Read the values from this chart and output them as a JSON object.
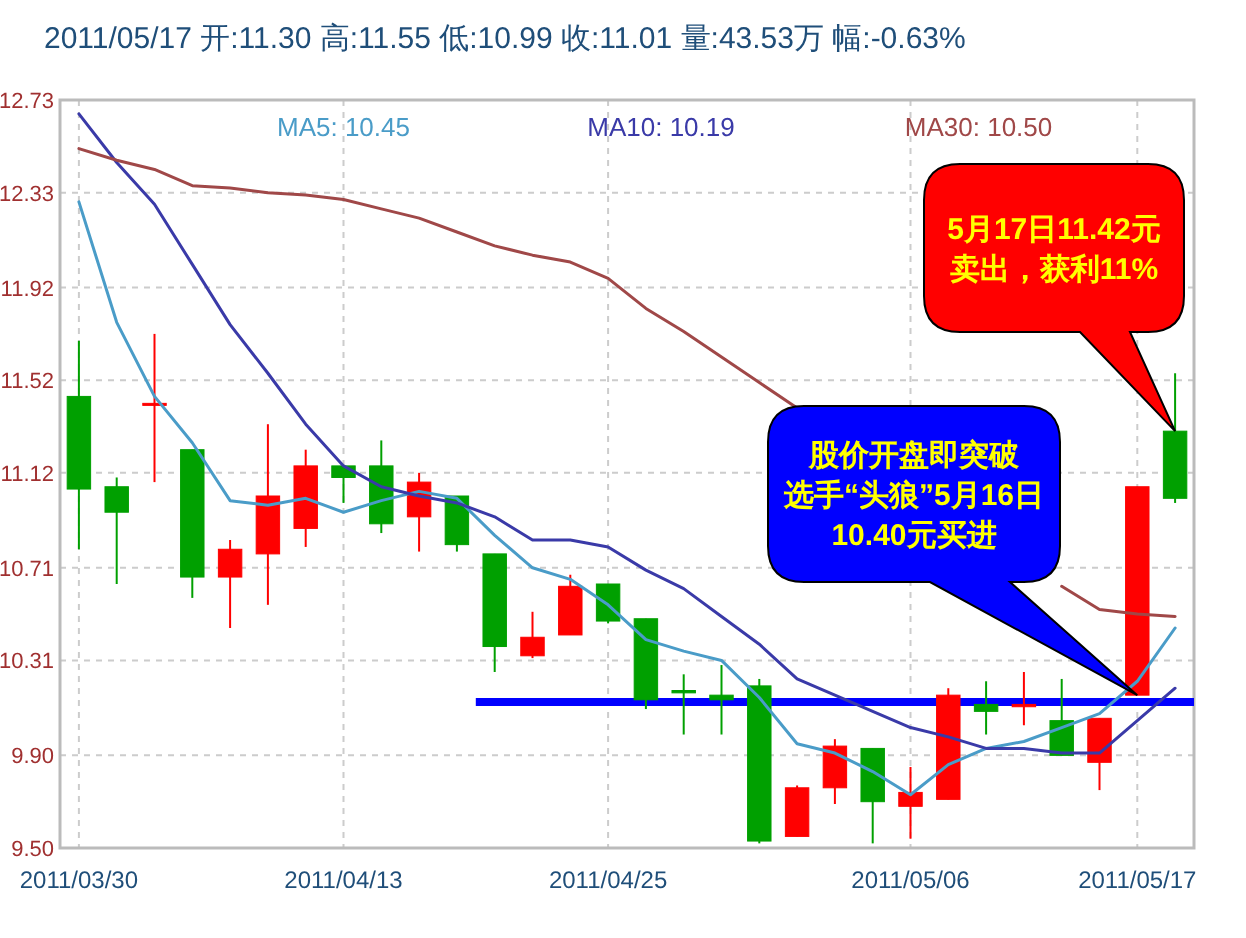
{
  "chart_data": {
    "type": "candlestick",
    "title": "2011/05/17  开:11.30  高:11.55  低:10.99  收:11.01  量:43.53万  幅:-0.63%",
    "categories": [
      "2011/03/30",
      null,
      null,
      null,
      null,
      null,
      null,
      "2011/04/13",
      null,
      null,
      null,
      null,
      null,
      null,
      "2011/04/25",
      null,
      null,
      null,
      null,
      null,
      null,
      null,
      "2011/05/06",
      null,
      null,
      null,
      null,
      null,
      "2011/05/17",
      null
    ],
    "ylim": [
      9.5,
      12.73
    ],
    "yticks": [
      {
        "value": 9.5,
        "label": "9.50"
      },
      {
        "value": 9.9,
        "label": "9.90"
      },
      {
        "value": 10.31,
        "label": "10.31"
      },
      {
        "value": 10.71,
        "label": "10.71"
      },
      {
        "value": 11.12,
        "label": "11.12"
      },
      {
        "value": 11.52,
        "label": "11.52"
      },
      {
        "value": 11.92,
        "label": "11.92"
      },
      {
        "value": 12.33,
        "label": "12.33"
      },
      {
        "value": 12.73,
        "label": "12.73"
      }
    ],
    "grid": true,
    "legend": "top",
    "series": [
      {
        "name": "MA5: 10.45",
        "type": "line",
        "color": "#4a9cc8",
        "values": [
          12.29,
          11.77,
          11.45,
          11.25,
          11.0,
          10.98,
          11.01,
          10.95,
          11.0,
          11.04,
          11.01,
          10.85,
          10.71,
          10.66,
          10.55,
          10.4,
          10.35,
          10.31,
          10.15,
          9.95,
          9.91,
          9.83,
          9.73,
          9.86,
          9.93,
          9.96,
          10.02,
          10.08,
          10.22,
          10.45
        ]
      },
      {
        "name": "MA10: 10.19",
        "type": "line",
        "color": "#3a3aa8",
        "values": [
          12.67,
          12.46,
          12.28,
          12.02,
          11.76,
          11.55,
          11.33,
          11.15,
          11.06,
          11.02,
          10.99,
          10.93,
          10.83,
          10.83,
          10.8,
          10.7,
          10.62,
          10.5,
          10.38,
          10.23,
          10.16,
          10.09,
          10.02,
          9.98,
          9.93,
          9.93,
          9.91,
          9.91,
          10.05,
          10.19
        ]
      },
      {
        "name": "MA30: 10.50",
        "type": "line",
        "color": "#a04848",
        "values": [
          12.52,
          12.47,
          12.43,
          12.36,
          12.35,
          12.33,
          12.32,
          12.3,
          12.26,
          12.22,
          12.16,
          12.1,
          12.06,
          12.03,
          11.96,
          11.83,
          11.73,
          11.62,
          11.51,
          11.4,
          null,
          null,
          null,
          null,
          null,
          null,
          10.63,
          10.53,
          10.51,
          10.5
        ]
      },
      {
        "colors": [
          "#00a000",
          "#00a000",
          "#ff0000",
          "#00a000",
          "#ff0000",
          "#ff0000",
          "#ff0000",
          "#00a000",
          "#00a000",
          "#ff0000",
          "#00a000",
          "#00a000",
          "#ff0000",
          "#ff0000",
          "#00a000",
          "#00a000",
          "#00a000",
          "#00a000",
          "#00a000",
          "#ff0000",
          "#ff0000",
          "#00a000",
          "#ff0000",
          "#ff0000",
          "#00a000",
          "#ff0000",
          "#00a000",
          "#ff0000",
          "#ff0000",
          "#00a000"
        ],
        "ohlc": [
          [
            11.45,
            11.69,
            10.79,
            11.05
          ],
          [
            11.06,
            11.1,
            10.64,
            10.95
          ],
          [
            11.42,
            11.72,
            11.08,
            11.42
          ],
          [
            11.22,
            11.22,
            10.58,
            10.67
          ],
          [
            10.67,
            10.83,
            10.45,
            10.79
          ],
          [
            10.77,
            11.33,
            10.55,
            11.02
          ],
          [
            10.88,
            11.22,
            10.8,
            11.15
          ],
          [
            11.15,
            11.15,
            10.99,
            11.1
          ],
          [
            11.15,
            11.26,
            10.86,
            10.9
          ],
          [
            10.93,
            11.12,
            10.78,
            11.08
          ],
          [
            11.02,
            11.02,
            10.78,
            10.81
          ],
          [
            10.77,
            10.77,
            10.26,
            10.37
          ],
          [
            10.33,
            10.52,
            10.32,
            10.41
          ],
          [
            10.42,
            10.68,
            10.42,
            10.63
          ],
          [
            10.64,
            10.64,
            10.47,
            10.48
          ],
          [
            10.49,
            10.49,
            10.1,
            10.14
          ],
          [
            10.18,
            10.25,
            9.99,
            10.17
          ],
          [
            10.16,
            10.29,
            9.99,
            10.14
          ],
          [
            10.2,
            10.23,
            9.52,
            9.53
          ],
          [
            9.55,
            9.77,
            9.55,
            9.76
          ],
          [
            9.76,
            9.97,
            9.69,
            9.94
          ],
          [
            9.93,
            9.93,
            9.52,
            9.7
          ],
          [
            9.68,
            9.85,
            9.54,
            9.74
          ],
          [
            9.71,
            10.19,
            9.71,
            10.16
          ],
          [
            10.12,
            10.22,
            9.99,
            10.09
          ],
          [
            10.11,
            10.26,
            10.03,
            10.12
          ],
          [
            10.05,
            10.23,
            9.9,
            9.9
          ],
          [
            9.87,
            10.06,
            9.75,
            10.06
          ],
          [
            10.16,
            11.06,
            10.16,
            11.06
          ],
          [
            11.3,
            11.55,
            10.99,
            11.01
          ]
        ]
      }
    ],
    "ref_lines": [
      {
        "axis": "y",
        "value": 10.13,
        "color": "#0000ff"
      }
    ],
    "annotations": [
      "5月17日11.42元",
      "卖出，获利11%",
      "股价开盘即突破",
      "选手“头狼”5月16日",
      "10.40元买进"
    ]
  }
}
